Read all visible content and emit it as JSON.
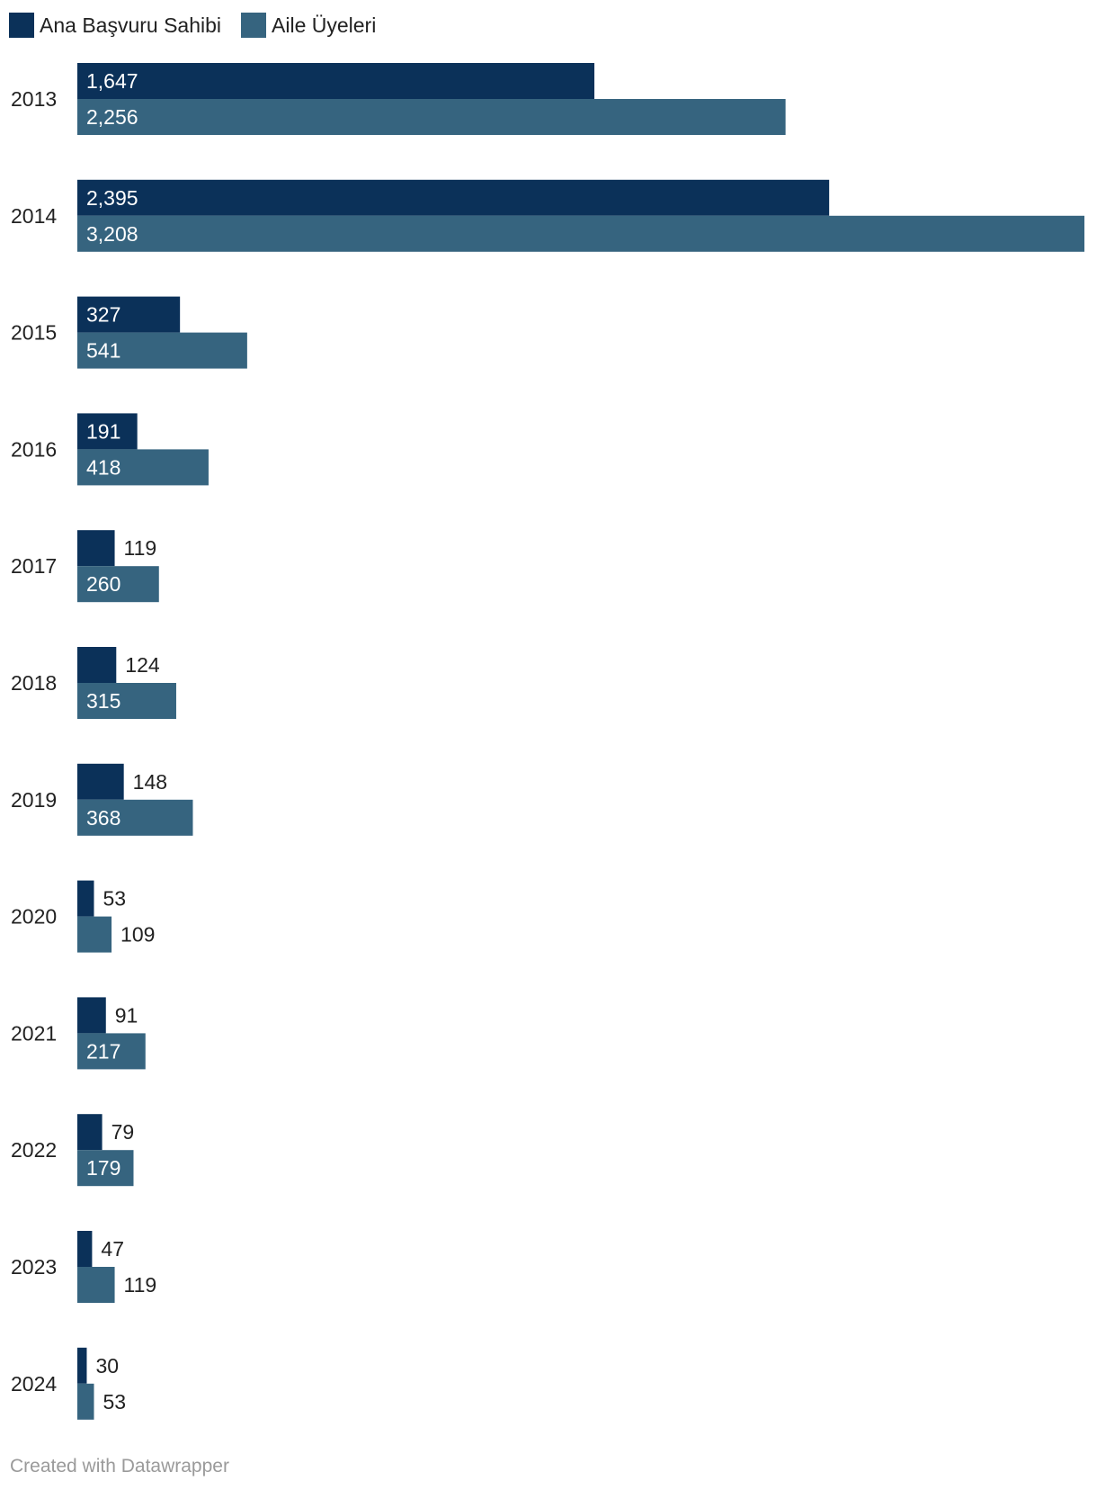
{
  "chart_data": {
    "type": "bar",
    "orientation": "horizontal",
    "categories": [
      "2013",
      "2014",
      "2015",
      "2016",
      "2017",
      "2018",
      "2019",
      "2020",
      "2021",
      "2022",
      "2023",
      "2024"
    ],
    "series": [
      {
        "name": "Ana Başvuru Sahibi",
        "color": "#0b3159",
        "values": [
          1647,
          2395,
          327,
          191,
          119,
          124,
          148,
          53,
          91,
          79,
          47,
          30
        ],
        "labels": [
          "1,647",
          "2,395",
          "327",
          "191",
          "119",
          "124",
          "148",
          "53",
          "91",
          "79",
          "47",
          "30"
        ]
      },
      {
        "name": "Aile Üyeleri",
        "color": "#36647f",
        "values": [
          2256,
          3208,
          541,
          418,
          260,
          315,
          368,
          109,
          217,
          179,
          119,
          53
        ],
        "labels": [
          "2,256",
          "3,208",
          "541",
          "418",
          "260",
          "315",
          "368",
          "109",
          "217",
          "179",
          "119",
          "53"
        ]
      }
    ],
    "xlim": [
      0,
      3208
    ],
    "grid": false,
    "legend_position": "top-left"
  },
  "footer": {
    "credit": "Created with Datawrapper"
  }
}
